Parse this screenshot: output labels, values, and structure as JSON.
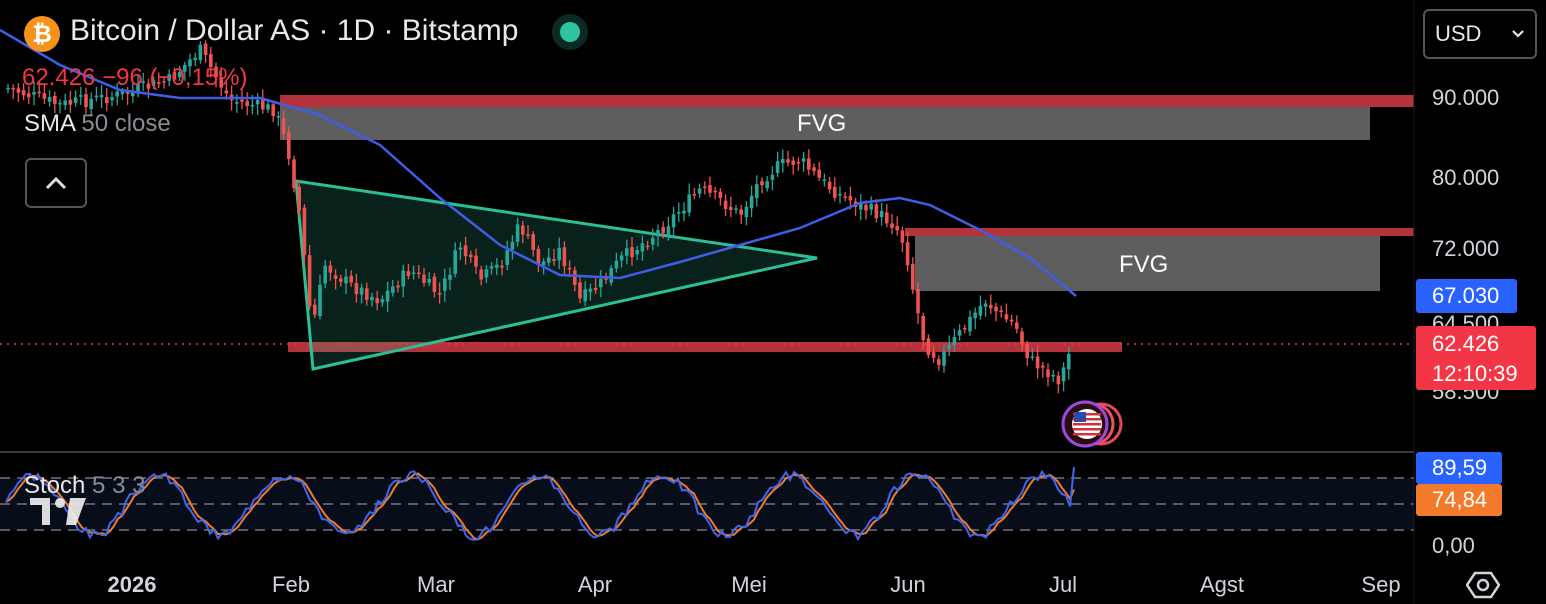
{
  "header": {
    "symbol_title": "Bitcoin / Dollar AS · 1D · Bitstamp",
    "coin_icon": "bitcoin-icon",
    "last_price": "62.426",
    "change": "−96",
    "change_pct": "(−0,15%)",
    "indicator_name": "SMA",
    "indicator_params": "50 close",
    "collapse_icon": "chevron-up-icon"
  },
  "currency_select": {
    "value": "USD",
    "icon": "chevron-down-icon"
  },
  "price_axis": {
    "labels": [
      "90.000",
      "80.000",
      "72.000",
      "64.500",
      "58.500"
    ],
    "sma_tag": "67.030",
    "price_tag": "62.426",
    "countdown": "12:10:39"
  },
  "annotations": {
    "fvg_upper": "FVG",
    "fvg_lower": "FVG",
    "event_icon": "us-flag-icon"
  },
  "stochastic": {
    "name": "Stoch",
    "params": "5 3 3",
    "k_tag": "89,59",
    "d_tag": "74,84",
    "zero_label": "0,00"
  },
  "time_axis": [
    "2026",
    "Feb",
    "Mar",
    "Apr",
    "Mei",
    "Jun",
    "Jul",
    "Agst",
    "Sep"
  ],
  "colors": {
    "up": "#26a69a",
    "down": "#ef5350",
    "sma": "#3f5ee8",
    "pattern": "#2bbf96",
    "zone": "#b3323c",
    "stoch_k": "#3f66f0",
    "stoch_d": "#f27a2a",
    "price_tag": "#f23645",
    "sma_tag": "#2962ff"
  },
  "chart_data": {
    "type": "candlestick",
    "symbol": "Bitcoin / Dollar AS",
    "timeframe": "1D",
    "exchange": "Bitstamp",
    "price_range_approx": [
      56000,
      92000
    ],
    "close_path_approx": [
      {
        "date": "2026-01-01",
        "close": 88500
      },
      {
        "date": "2026-01-15",
        "close": 92000
      },
      {
        "date": "2026-01-28",
        "close": 87500
      },
      {
        "date": "2026-02-05",
        "close": 67000
      },
      {
        "date": "2026-02-10",
        "close": 70000
      },
      {
        "date": "2026-02-25",
        "close": 66000
      },
      {
        "date": "2026-03-05",
        "close": 69000
      },
      {
        "date": "2026-03-20",
        "close": 72000
      },
      {
        "date": "2026-04-01",
        "close": 67500
      },
      {
        "date": "2026-04-15",
        "close": 76000
      },
      {
        "date": "2026-05-01",
        "close": 79000
      },
      {
        "date": "2026-05-10",
        "close": 82500
      },
      {
        "date": "2026-05-20",
        "close": 78000
      },
      {
        "date": "2026-05-28",
        "close": 73500
      },
      {
        "date": "2026-06-05",
        "close": 59000
      },
      {
        "date": "2026-06-15",
        "close": 66500
      },
      {
        "date": "2026-06-25",
        "close": 58000
      },
      {
        "date": "2026-07-02",
        "close": 62426
      }
    ],
    "sma50_last": 67030,
    "stochastic_last": {
      "k": 89.59,
      "d": 74.84
    }
  }
}
